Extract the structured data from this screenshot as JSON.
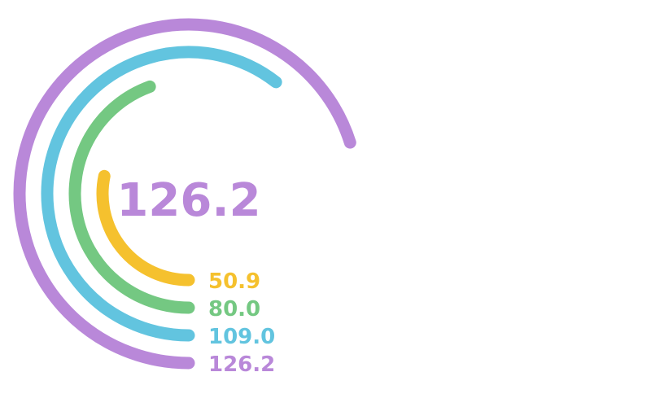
{
  "chart_data": {
    "type": "radial-bar",
    "center_label": "126.2",
    "axis_max": 180,
    "series": [
      {
        "label": "50.9",
        "value": 50.9,
        "color": "#F5C12E"
      },
      {
        "label": "80.0",
        "value": 80.0,
        "color": "#74C882"
      },
      {
        "label": "109.0",
        "value": 109.0,
        "color": "#62C4DF"
      },
      {
        "label": "126.2",
        "value": 126.2,
        "color": "#B988D9"
      }
    ]
  }
}
